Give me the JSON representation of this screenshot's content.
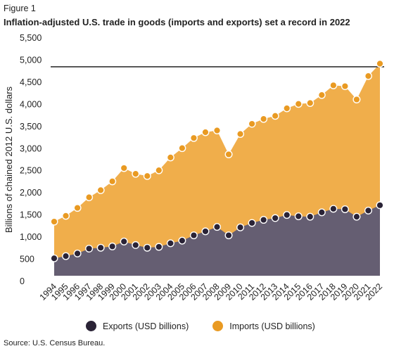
{
  "figure_label": "Figure 1",
  "title": "Inflation-adjusted U.S. trade in goods (imports and exports) set a record in 2022",
  "source": "Source: U.S. Census Bureau.",
  "colors": {
    "exports_fill": "#655e72",
    "exports_dot": "#2a2336",
    "imports_fill": "#f0ae4b",
    "imports_dot": "#e99a22",
    "reference_line": "#333333"
  },
  "chart_data": {
    "type": "area",
    "title": "Inflation-adjusted U.S. trade in goods (imports and exports) set a record in 2022",
    "xlabel": "",
    "ylabel": "Billions of chained 2012 U.S. dollars",
    "ylim": [
      0,
      5500
    ],
    "yticks": [
      0,
      500,
      1000,
      1500,
      2000,
      2500,
      3000,
      3500,
      4000,
      4500,
      5000,
      5500
    ],
    "ytick_labels": [
      "0",
      "500",
      "1,000",
      "1,500",
      "2,000",
      "2,500",
      "3,000",
      "3,500",
      "4,000",
      "4,500",
      "5,000",
      "5,500"
    ],
    "reference_line": 4850,
    "grid": false,
    "legend_position": "bottom",
    "x": [
      "1994",
      "1995",
      "1996",
      "1997",
      "1998",
      "1999",
      "2000",
      "2001",
      "2002",
      "2003",
      "2004",
      "2005",
      "2006",
      "2007",
      "2008",
      "2009",
      "2010",
      "2011",
      "2012",
      "2013",
      "2014",
      "2015",
      "2016",
      "2017",
      "2018",
      "2019",
      "2020",
      "2021",
      "2022"
    ],
    "series": [
      {
        "name": "Exports (USD billions)",
        "values": [
          520,
          570,
          630,
          740,
          760,
          790,
          900,
          820,
          760,
          780,
          860,
          920,
          1040,
          1130,
          1230,
          1040,
          1220,
          1320,
          1390,
          1430,
          1500,
          1470,
          1460,
          1560,
          1640,
          1630,
          1460,
          1600,
          1720
        ]
      },
      {
        "name": "Imports (USD billions)",
        "values": [
          1350,
          1480,
          1660,
          1900,
          2060,
          2260,
          2560,
          2430,
          2380,
          2510,
          2800,
          3010,
          3240,
          3370,
          3410,
          2870,
          3330,
          3560,
          3670,
          3740,
          3910,
          4010,
          4030,
          4210,
          4430,
          4410,
          4110,
          4640,
          4920
        ]
      }
    ]
  }
}
